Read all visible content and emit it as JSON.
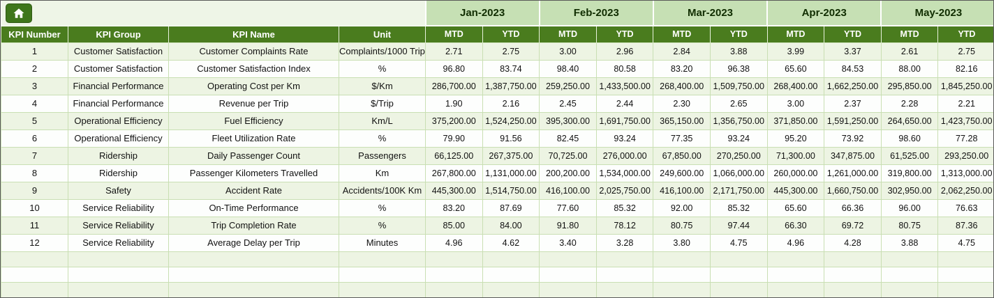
{
  "toolbar": {
    "home_icon": "home-icon"
  },
  "colors": {
    "header_green": "#4a7c1e",
    "month_green": "#c6e0b4",
    "band_green": "#edf4e3",
    "grid_green": "#c9dfb3",
    "home_button_green": "#3e761b"
  },
  "table": {
    "left_headers": [
      "KPI Number",
      "KPI Group",
      "KPI Name",
      "Unit"
    ],
    "months": [
      "Jan-2023",
      "Feb-2023",
      "Mar-2023",
      "Apr-2023",
      "May-2023"
    ],
    "sub_headers": [
      "MTD",
      "YTD"
    ],
    "empty_row_count": 3,
    "rows": [
      {
        "kpi_number": "1",
        "group": "Customer Satisfaction",
        "name": "Customer Complaints Rate",
        "unit": "Complaints/1000 Trips",
        "values": [
          "2.71",
          "2.75",
          "3.00",
          "2.96",
          "2.84",
          "3.88",
          "3.99",
          "3.37",
          "2.61",
          "2.75"
        ]
      },
      {
        "kpi_number": "2",
        "group": "Customer Satisfaction",
        "name": "Customer Satisfaction Index",
        "unit": "%",
        "values": [
          "96.80",
          "83.74",
          "98.40",
          "80.58",
          "83.20",
          "96.38",
          "65.60",
          "84.53",
          "88.00",
          "82.16"
        ]
      },
      {
        "kpi_number": "3",
        "group": "Financial Performance",
        "name": "Operating Cost per Km",
        "unit": "$/Km",
        "values": [
          "286,700.00",
          "1,387,750.00",
          "259,250.00",
          "1,433,500.00",
          "268,400.00",
          "1,509,750.00",
          "268,400.00",
          "1,662,250.00",
          "295,850.00",
          "1,845,250.00"
        ]
      },
      {
        "kpi_number": "4",
        "group": "Financial Performance",
        "name": "Revenue per Trip",
        "unit": "$/Trip",
        "values": [
          "1.90",
          "2.16",
          "2.45",
          "2.44",
          "2.30",
          "2.65",
          "3.00",
          "2.37",
          "2.28",
          "2.21"
        ]
      },
      {
        "kpi_number": "5",
        "group": "Operational Efficiency",
        "name": "Fuel Efficiency",
        "unit": "Km/L",
        "values": [
          "375,200.00",
          "1,524,250.00",
          "395,300.00",
          "1,691,750.00",
          "365,150.00",
          "1,356,750.00",
          "371,850.00",
          "1,591,250.00",
          "264,650.00",
          "1,423,750.00"
        ]
      },
      {
        "kpi_number": "6",
        "group": "Operational Efficiency",
        "name": "Fleet Utilization Rate",
        "unit": "%",
        "values": [
          "79.90",
          "91.56",
          "82.45",
          "93.24",
          "77.35",
          "93.24",
          "95.20",
          "73.92",
          "98.60",
          "77.28"
        ]
      },
      {
        "kpi_number": "7",
        "group": "Ridership",
        "name": "Daily Passenger Count",
        "unit": "Passengers",
        "values": [
          "66,125.00",
          "267,375.00",
          "70,725.00",
          "276,000.00",
          "67,850.00",
          "270,250.00",
          "71,300.00",
          "347,875.00",
          "61,525.00",
          "293,250.00"
        ]
      },
      {
        "kpi_number": "8",
        "group": "Ridership",
        "name": "Passenger Kilometers Travelled",
        "unit": "Km",
        "values": [
          "267,800.00",
          "1,131,000.00",
          "200,200.00",
          "1,534,000.00",
          "249,600.00",
          "1,066,000.00",
          "260,000.00",
          "1,261,000.00",
          "319,800.00",
          "1,313,000.00"
        ]
      },
      {
        "kpi_number": "9",
        "group": "Safety",
        "name": "Accident Rate",
        "unit": "Accidents/100K Km",
        "values": [
          "445,300.00",
          "1,514,750.00",
          "416,100.00",
          "2,025,750.00",
          "416,100.00",
          "2,171,750.00",
          "445,300.00",
          "1,660,750.00",
          "302,950.00",
          "2,062,250.00"
        ]
      },
      {
        "kpi_number": "10",
        "group": "Service Reliability",
        "name": "On-Time Performance",
        "unit": "%",
        "values": [
          "83.20",
          "87.69",
          "77.60",
          "85.32",
          "92.00",
          "85.32",
          "65.60",
          "66.36",
          "96.00",
          "76.63"
        ]
      },
      {
        "kpi_number": "11",
        "group": "Service Reliability",
        "name": "Trip Completion Rate",
        "unit": "%",
        "values": [
          "85.00",
          "84.00",
          "91.80",
          "78.12",
          "80.75",
          "97.44",
          "66.30",
          "69.72",
          "80.75",
          "87.36"
        ]
      },
      {
        "kpi_number": "12",
        "group": "Service Reliability",
        "name": "Average Delay per Trip",
        "unit": "Minutes",
        "values": [
          "4.96",
          "4.62",
          "3.40",
          "3.28",
          "3.80",
          "4.75",
          "4.96",
          "4.28",
          "3.88",
          "4.75"
        ]
      }
    ]
  }
}
